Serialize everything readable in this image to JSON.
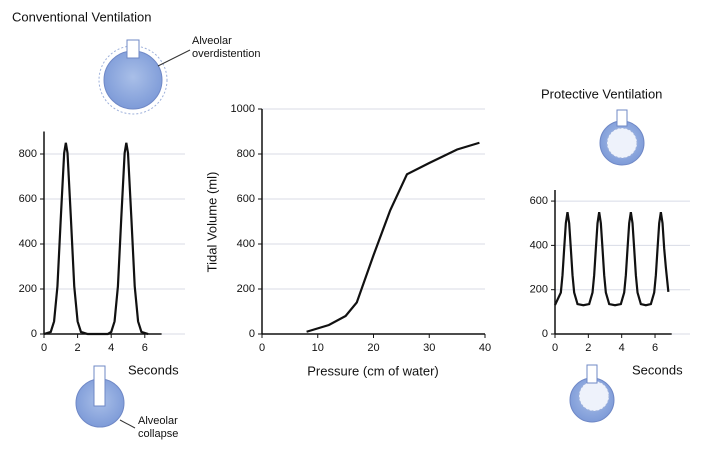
{
  "chart_data": [
    {
      "type": "line",
      "title": "Conventional Ventilation",
      "xlabel": "Seconds",
      "color": "#111111",
      "grid": true,
      "annotations": [
        [
          "Alveolar",
          "overdistention"
        ],
        [
          "Alveolar",
          "collapse"
        ]
      ],
      "x": [
        0,
        0.4,
        0.6,
        0.8,
        1.0,
        1.2,
        1.3,
        1.4,
        1.6,
        1.8,
        2.0,
        2.2,
        2.6,
        3.0,
        3.4,
        3.8,
        4.0,
        4.2,
        4.4,
        4.6,
        4.8,
        4.9,
        5.0,
        5.2,
        5.4,
        5.6,
        5.8,
        6.2
      ],
      "values": [
        0,
        9,
        56,
        212,
        516,
        804,
        850,
        804,
        516,
        212,
        56,
        9,
        0,
        0,
        0,
        0,
        9,
        56,
        212,
        516,
        804,
        850,
        804,
        516,
        212,
        56,
        9,
        0
      ],
      "xlim": [
        0,
        7
      ],
      "ylim": [
        0,
        900
      ],
      "xticks": [
        0,
        2,
        4,
        6
      ],
      "yticks": [
        0,
        200,
        400,
        600,
        800
      ]
    },
    {
      "type": "line",
      "xlabel": "Pressure (cm of water)",
      "ylabel": "Tidal Volume (ml)",
      "color": "#111111",
      "grid": true,
      "x": [
        8,
        12,
        15,
        17,
        20,
        23,
        26,
        30,
        35,
        39
      ],
      "values": [
        10,
        40,
        80,
        140,
        350,
        550,
        710,
        760,
        820,
        850
      ],
      "xlim": [
        0,
        40
      ],
      "ylim": [
        0,
        1000
      ],
      "xticks": [
        0,
        10,
        20,
        30,
        40
      ],
      "yticks": [
        0,
        200,
        400,
        600,
        800,
        1000
      ]
    },
    {
      "type": "line",
      "title": "Protective Ventilation",
      "xlabel": "Seconds",
      "color": "#111111",
      "grid": true,
      "x": [
        0,
        0.35,
        0.45,
        0.55,
        0.65,
        0.75,
        0.85,
        0.95,
        1.05,
        1.15,
        1.35,
        1.7,
        2.05,
        2.25,
        2.35,
        2.45,
        2.55,
        2.65,
        2.75,
        2.85,
        2.95,
        3.05,
        3.25,
        3.6,
        3.95,
        4.15,
        4.25,
        4.35,
        4.45,
        4.55,
        4.65,
        4.75,
        4.85,
        4.95,
        5.15,
        5.45,
        5.75,
        5.95,
        6.05,
        6.15,
        6.25,
        6.35,
        6.45,
        6.55,
        6.65,
        6.8
      ],
      "values": [
        131,
        187,
        266,
        385,
        500,
        550,
        500,
        385,
        266,
        187,
        135,
        130,
        135,
        187,
        266,
        385,
        500,
        550,
        500,
        385,
        266,
        187,
        135,
        130,
        135,
        187,
        266,
        385,
        500,
        550,
        500,
        385,
        266,
        187,
        135,
        130,
        135,
        187,
        266,
        385,
        500,
        550,
        500,
        385,
        300,
        190
      ],
      "xlim": [
        0,
        7
      ],
      "ylim": [
        0,
        650
      ],
      "xticks": [
        0,
        2,
        4,
        6
      ],
      "yticks": [
        0,
        200,
        400,
        600
      ]
    }
  ]
}
